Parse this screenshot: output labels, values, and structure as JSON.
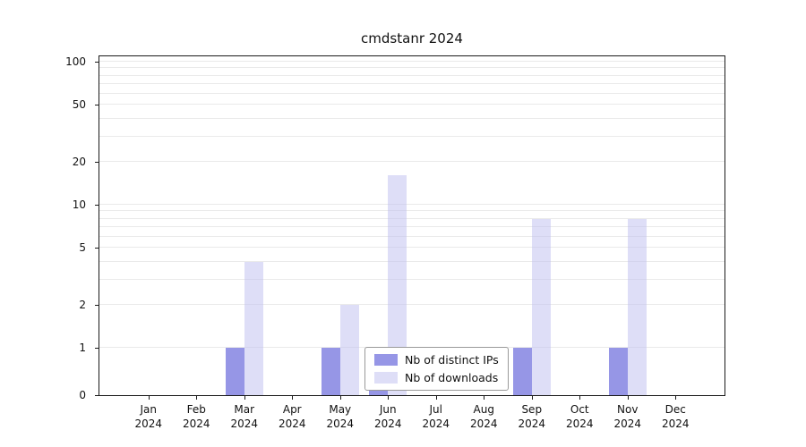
{
  "title": "cmdstanr 2024",
  "chart_data": {
    "type": "bar",
    "title": "cmdstanr 2024",
    "categories": [
      "Jan",
      "Feb",
      "Mar",
      "Apr",
      "May",
      "Jun",
      "Jul",
      "Aug",
      "Sep",
      "Oct",
      "Nov",
      "Dec"
    ],
    "year": "2024",
    "series": [
      {
        "name": "Nb of distinct IPs",
        "color": "rgba(105,105,220,0.7)",
        "values": [
          0,
          0,
          1,
          0,
          1,
          1,
          0,
          0,
          1,
          0,
          1,
          0
        ]
      },
      {
        "name": "Nb of downloads",
        "color": "rgba(190,190,240,0.5)",
        "values": [
          0,
          0,
          4,
          0,
          2,
          16,
          0,
          0,
          8,
          0,
          8,
          0
        ]
      }
    ],
    "yticks": [
      0,
      1,
      2,
      5,
      10,
      20,
      50,
      100
    ],
    "grid_values": [
      1,
      2,
      3,
      4,
      5,
      6,
      7,
      8,
      9,
      10,
      20,
      30,
      40,
      50,
      60,
      70,
      80,
      90,
      100
    ],
    "yscale": "symlog",
    "ylim": [
      0,
      112
    ],
    "grid": true,
    "legend_position": "lower center"
  },
  "colors": {
    "background": "#ffffff",
    "grid": "#eaeaea",
    "axis": "#1a1a1a"
  }
}
